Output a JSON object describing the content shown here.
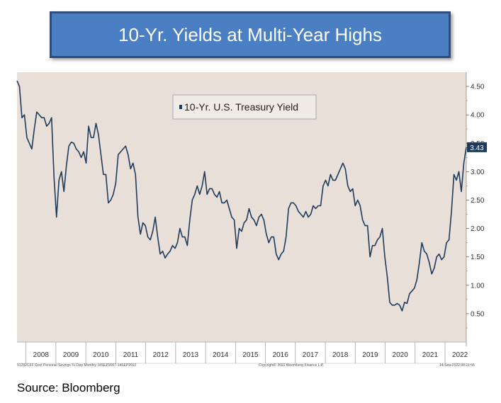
{
  "title": "10-Yr. Yields at Multi-Year Highs",
  "source": "Source: Bloomberg",
  "footer": {
    "left": "91282CFF Govt Personal Savings % Disp  Monthly 18SEP2007-14SEP2022",
    "middle": "Copyright© 2022 Bloomberg Finance L.P.",
    "right": "14-Sep-2022 08:21:55"
  },
  "colors": {
    "title_bg": "#4a7fc4",
    "title_border": "#2f4d7a",
    "plot_bg": "#e8dfd9",
    "line": "#1f3b5c"
  },
  "chart_data": {
    "type": "line",
    "legend_label": "10-Yr. U.S. Treasury Yield",
    "legend_position": "top-left",
    "last_value_label": "3.43",
    "x_start": 2007.7,
    "x_end": 2022.71,
    "xlim": [
      2007.7,
      2022.71
    ],
    "ylim": [
      0.0,
      4.75
    ],
    "y_ticks": [
      "0.50",
      "1.00",
      "1.50",
      "2.00",
      "2.50",
      "3.00",
      "3.50",
      "4.00",
      "4.50"
    ],
    "x_ticks": [
      "2008",
      "2009",
      "2010",
      "2011",
      "2012",
      "2013",
      "2014",
      "2015",
      "2016",
      "2017",
      "2018",
      "2019",
      "2020",
      "2021",
      "2022"
    ],
    "grid": false,
    "series": [
      {
        "values": [
          4.6,
          4.5,
          3.95,
          4.0,
          3.6,
          3.5,
          3.4,
          3.75,
          4.05,
          4.0,
          3.95,
          3.95,
          3.8,
          3.85,
          3.95,
          2.9,
          2.2,
          2.85,
          3.0,
          2.65,
          3.1,
          3.45,
          3.52,
          3.5,
          3.4,
          3.35,
          3.25,
          3.35,
          3.15,
          3.8,
          3.6,
          3.6,
          3.85,
          3.65,
          3.3,
          2.95,
          2.95,
          2.45,
          2.5,
          2.6,
          2.8,
          3.3,
          3.35,
          3.4,
          3.45,
          3.3,
          3.05,
          3.15,
          2.95,
          2.2,
          1.9,
          2.1,
          2.05,
          1.85,
          1.8,
          1.95,
          2.2,
          1.85,
          1.55,
          1.6,
          1.48,
          1.55,
          1.6,
          1.7,
          1.65,
          1.75,
          2.0,
          1.85,
          1.85,
          1.7,
          2.15,
          2.5,
          2.6,
          2.75,
          2.6,
          2.75,
          3.0,
          2.6,
          2.7,
          2.7,
          2.6,
          2.55,
          2.65,
          2.45,
          2.45,
          2.5,
          2.35,
          2.2,
          2.15,
          1.65,
          2.0,
          1.95,
          2.1,
          2.15,
          2.35,
          2.2,
          2.15,
          2.05,
          2.2,
          2.25,
          2.15,
          1.9,
          1.75,
          1.85,
          1.85,
          1.55,
          1.45,
          1.55,
          1.6,
          1.85,
          2.35,
          2.45,
          2.45,
          2.4,
          2.3,
          2.25,
          2.2,
          2.3,
          2.2,
          2.25,
          2.4,
          2.35,
          2.4,
          2.4,
          2.75,
          2.85,
          2.75,
          2.95,
          2.85,
          2.85,
          2.95,
          3.05,
          3.15,
          3.05,
          2.75,
          2.65,
          2.7,
          2.4,
          2.5,
          2.4,
          2.15,
          2.05,
          2.05,
          1.5,
          1.7,
          1.7,
          1.8,
          1.85,
          2.0,
          1.5,
          1.15,
          0.7,
          0.65,
          0.65,
          0.68,
          0.65,
          0.55,
          0.7,
          0.68,
          0.85,
          0.9,
          0.95,
          1.1,
          1.4,
          1.75,
          1.6,
          1.55,
          1.4,
          1.2,
          1.3,
          1.5,
          1.55,
          1.45,
          1.5,
          1.75,
          1.8,
          2.3,
          2.95,
          2.85,
          3.0,
          2.65,
          3.15,
          3.43
        ]
      }
    ]
  }
}
